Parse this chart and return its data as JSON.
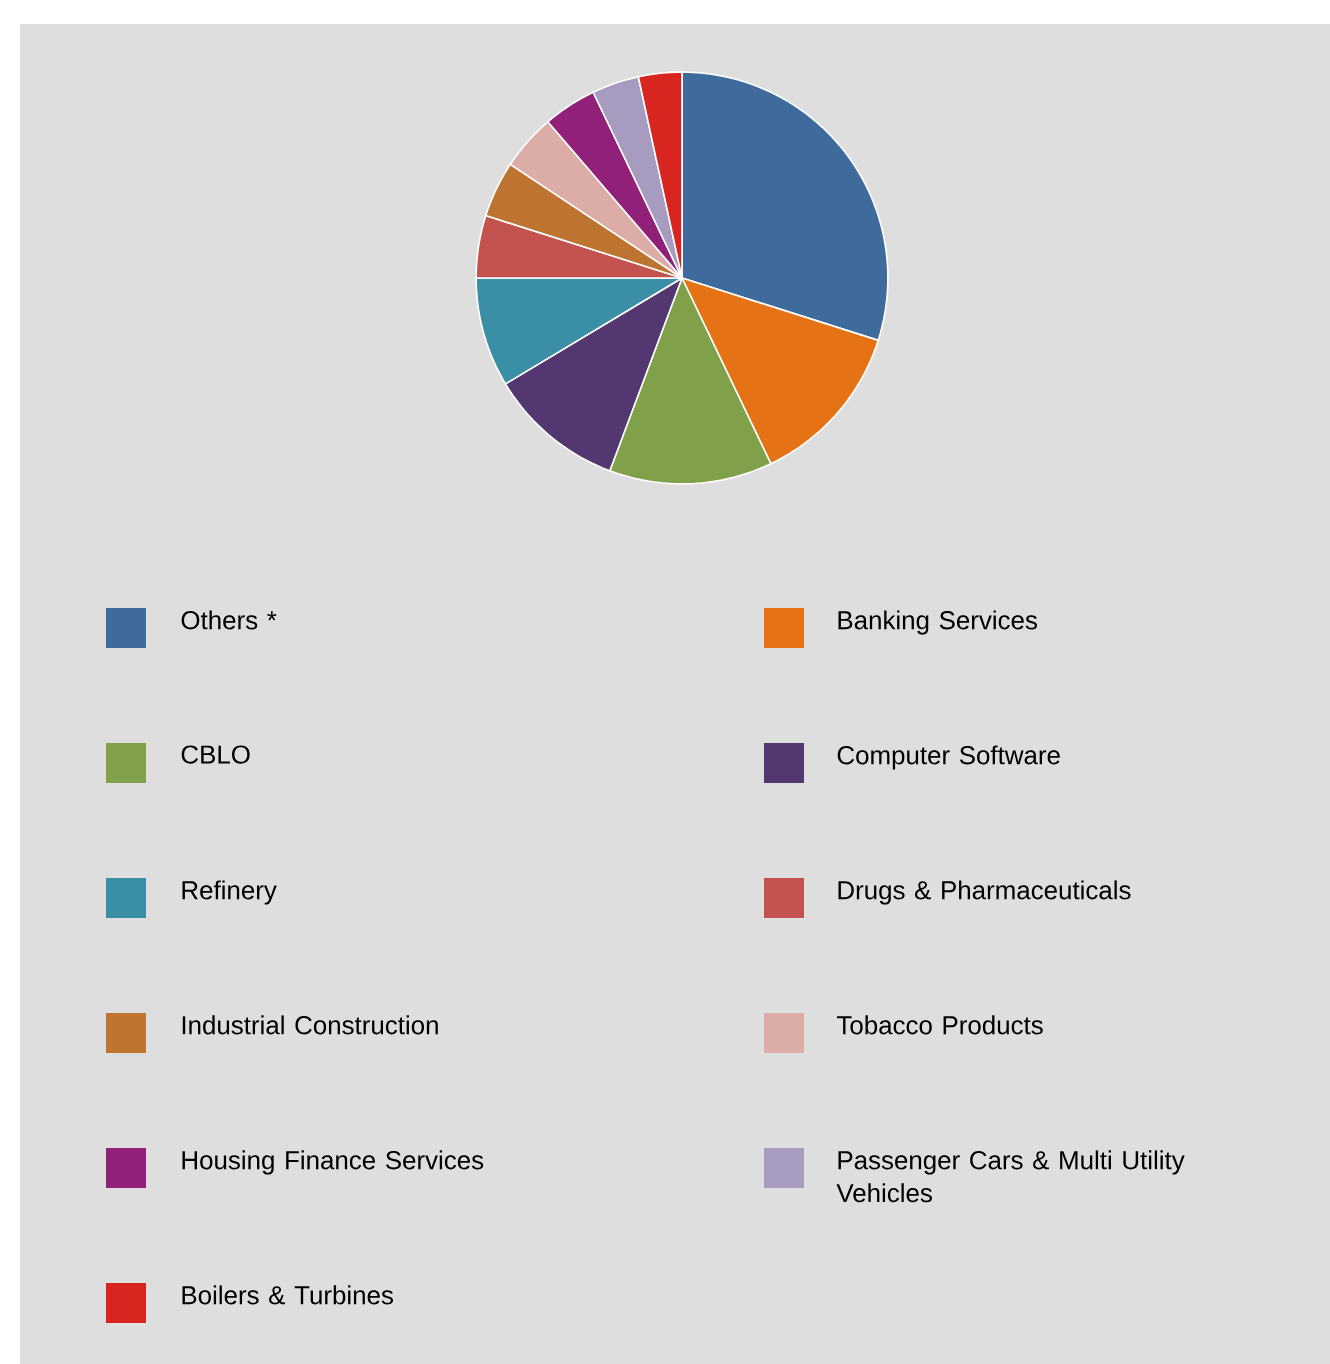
{
  "chart_data": {
    "type": "pie",
    "legend": "bottom",
    "categories": [
      "Others *",
      "Banking Services",
      "CBLO",
      "Computer Software",
      "Refinery",
      "Drugs & Pharmaceuticals",
      "Industrial Construction",
      "Tobacco Products",
      "Housing Finance Services",
      "Passenger Cars & Multi Utility Vehicles",
      "Boilers & Turbines"
    ],
    "values": [
      29.9,
      13.0,
      12.8,
      10.7,
      8.6,
      4.9,
      4.4,
      4.4,
      4.2,
      3.7,
      3.4
    ],
    "colors": [
      "#3f6a9c",
      "#e57316",
      "#80a04a",
      "#523770",
      "#3a8fa6",
      "#c4534f",
      "#bd7431",
      "#dcaca6",
      "#912178",
      "#a89bc0",
      "#d9251f"
    ]
  }
}
